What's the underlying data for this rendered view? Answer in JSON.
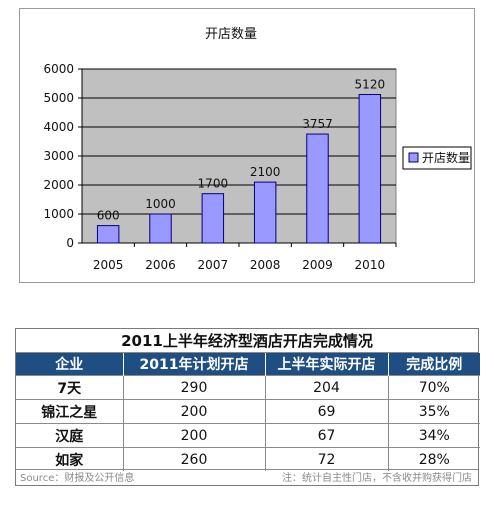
{
  "chart_data": {
    "type": "bar",
    "title": "开店数量",
    "categories": [
      "2005",
      "2006",
      "2007",
      "2008",
      "2009",
      "2010"
    ],
    "series": [
      {
        "name": "开店数量",
        "values": [
          600,
          1000,
          1700,
          2100,
          3757,
          5120
        ]
      }
    ],
    "data_labels": [
      "600",
      "1000",
      "1700",
      "2100",
      "3757",
      "5120"
    ],
    "y_ticks": [
      "0",
      "1000",
      "2000",
      "3000",
      "4000",
      "5000",
      "6000"
    ],
    "ylim": [
      0,
      6000
    ],
    "grid": true,
    "legend": "right",
    "colors": {
      "bar": "#9999ff",
      "bar_border": "#000080",
      "plot_bg": "#c0c0c0"
    }
  },
  "table": {
    "title": "2011上半年经济型酒店开店完成情况",
    "headers": [
      "企业",
      "2011年计划开店",
      "上半年实际开店",
      "完成比例"
    ],
    "rows": [
      {
        "name": "7天",
        "plan": "290",
        "actual": "204",
        "ratio": "70%"
      },
      {
        "name": "锦江之星",
        "plan": "200",
        "actual": "69",
        "ratio": "35%"
      },
      {
        "name": "汉庭",
        "plan": "200",
        "actual": "67",
        "ratio": "34%"
      },
      {
        "name": "如家",
        "plan": "260",
        "actual": "72",
        "ratio": "28%"
      }
    ],
    "header_color": "#1f4e82",
    "source": "Source：财报及公开信息",
    "note": "注：统计自主性门店，不含收并购获得门店"
  }
}
